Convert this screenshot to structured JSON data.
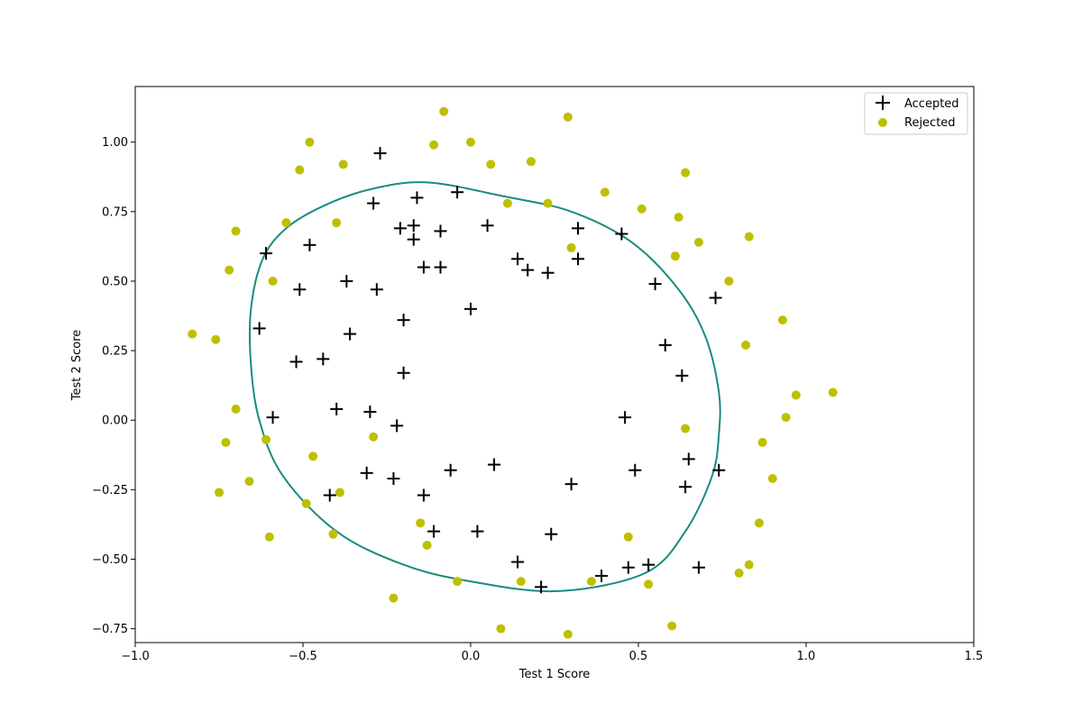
{
  "chart_data": {
    "type": "scatter",
    "title": "",
    "xlabel": "Test 1 Score",
    "ylabel": "Test 2 Score",
    "xlim": [
      -1.0,
      1.5
    ],
    "ylim": [
      -0.8,
      1.2
    ],
    "xticks": [
      -1.0,
      -0.5,
      0.0,
      0.5,
      1.0,
      1.5
    ],
    "xtick_labels": [
      "−1.0",
      "−0.5",
      "0.0",
      "0.5",
      "1.0",
      "1.5"
    ],
    "yticks": [
      -0.75,
      -0.5,
      -0.25,
      0.0,
      0.25,
      0.5,
      0.75,
      1.0
    ],
    "ytick_labels": [
      "−0.75",
      "−0.50",
      "−0.25",
      "0.00",
      "0.25",
      "0.50",
      "0.75",
      "1.00"
    ],
    "grid": false,
    "legend_position": "top-right",
    "series": [
      {
        "name": "Accepted",
        "marker": "plus",
        "color": "#000000",
        "points": [
          [
            -0.27,
            0.96
          ],
          [
            -0.29,
            0.78
          ],
          [
            -0.16,
            0.8
          ],
          [
            -0.04,
            0.82
          ],
          [
            -0.21,
            0.69
          ],
          [
            -0.17,
            0.7
          ],
          [
            -0.09,
            0.68
          ],
          [
            0.05,
            0.7
          ],
          [
            0.32,
            0.69
          ],
          [
            0.45,
            0.67
          ],
          [
            -0.48,
            0.63
          ],
          [
            -0.17,
            0.65
          ],
          [
            -0.61,
            0.6
          ],
          [
            0.14,
            0.58
          ],
          [
            0.32,
            0.58
          ],
          [
            0.17,
            0.54
          ],
          [
            0.23,
            0.53
          ],
          [
            -0.14,
            0.55
          ],
          [
            -0.09,
            0.55
          ],
          [
            -0.51,
            0.47
          ],
          [
            -0.37,
            0.5
          ],
          [
            -0.28,
            0.47
          ],
          [
            0.55,
            0.49
          ],
          [
            0.73,
            0.44
          ],
          [
            0.0,
            0.4
          ],
          [
            -0.2,
            0.36
          ],
          [
            -0.63,
            0.33
          ],
          [
            -0.36,
            0.31
          ],
          [
            0.58,
            0.27
          ],
          [
            -0.52,
            0.21
          ],
          [
            -0.44,
            0.22
          ],
          [
            -0.2,
            0.17
          ],
          [
            0.63,
            0.16
          ],
          [
            -0.59,
            0.01
          ],
          [
            -0.4,
            0.04
          ],
          [
            -0.3,
            0.03
          ],
          [
            -0.22,
            -0.02
          ],
          [
            0.46,
            0.01
          ],
          [
            -0.31,
            -0.19
          ],
          [
            -0.23,
            -0.21
          ],
          [
            -0.06,
            -0.18
          ],
          [
            0.07,
            -0.16
          ],
          [
            0.49,
            -0.18
          ],
          [
            0.65,
            -0.14
          ],
          [
            0.74,
            -0.18
          ],
          [
            0.3,
            -0.23
          ],
          [
            0.64,
            -0.24
          ],
          [
            -0.42,
            -0.27
          ],
          [
            -0.14,
            -0.27
          ],
          [
            -0.11,
            -0.4
          ],
          [
            0.02,
            -0.4
          ],
          [
            0.24,
            -0.41
          ],
          [
            0.14,
            -0.51
          ],
          [
            0.21,
            -0.6
          ],
          [
            0.39,
            -0.56
          ],
          [
            0.47,
            -0.53
          ],
          [
            0.53,
            -0.52
          ],
          [
            0.68,
            -0.53
          ]
        ]
      },
      {
        "name": "Rejected",
        "marker": "circle",
        "color": "#bfbf00",
        "points": [
          [
            -0.08,
            1.11
          ],
          [
            0.29,
            1.09
          ],
          [
            -0.48,
            1.0
          ],
          [
            -0.11,
            0.99
          ],
          [
            0.0,
            1.0
          ],
          [
            -0.51,
            0.9
          ],
          [
            -0.38,
            0.92
          ],
          [
            0.06,
            0.92
          ],
          [
            0.18,
            0.93
          ],
          [
            0.64,
            0.89
          ],
          [
            0.4,
            0.82
          ],
          [
            0.11,
            0.78
          ],
          [
            0.23,
            0.78
          ],
          [
            0.51,
            0.76
          ],
          [
            0.62,
            0.73
          ],
          [
            -0.55,
            0.71
          ],
          [
            -0.4,
            0.71
          ],
          [
            -0.7,
            0.68
          ],
          [
            0.83,
            0.66
          ],
          [
            0.68,
            0.64
          ],
          [
            0.3,
            0.62
          ],
          [
            0.61,
            0.59
          ],
          [
            -0.72,
            0.54
          ],
          [
            -0.59,
            0.5
          ],
          [
            0.77,
            0.5
          ],
          [
            0.93,
            0.36
          ],
          [
            -0.83,
            0.31
          ],
          [
            -0.76,
            0.29
          ],
          [
            0.82,
            0.27
          ],
          [
            0.97,
            0.09
          ],
          [
            1.08,
            0.1
          ],
          [
            -0.7,
            0.04
          ],
          [
            0.94,
            0.01
          ],
          [
            0.64,
            -0.03
          ],
          [
            -0.29,
            -0.06
          ],
          [
            -0.61,
            -0.07
          ],
          [
            -0.73,
            -0.08
          ],
          [
            0.87,
            -0.08
          ],
          [
            -0.47,
            -0.13
          ],
          [
            0.9,
            -0.21
          ],
          [
            -0.66,
            -0.22
          ],
          [
            -0.75,
            -0.26
          ],
          [
            -0.39,
            -0.26
          ],
          [
            -0.49,
            -0.3
          ],
          [
            -0.15,
            -0.37
          ],
          [
            0.86,
            -0.37
          ],
          [
            -0.41,
            -0.41
          ],
          [
            -0.6,
            -0.42
          ],
          [
            0.47,
            -0.42
          ],
          [
            -0.13,
            -0.45
          ],
          [
            0.83,
            -0.52
          ],
          [
            0.8,
            -0.55
          ],
          [
            -0.04,
            -0.58
          ],
          [
            0.15,
            -0.58
          ],
          [
            0.36,
            -0.58
          ],
          [
            0.53,
            -0.59
          ],
          [
            -0.23,
            -0.64
          ],
          [
            0.09,
            -0.75
          ],
          [
            0.6,
            -0.74
          ],
          [
            0.29,
            -0.77
          ]
        ]
      }
    ],
    "decision_boundary": {
      "color": "#1a8b80",
      "points": [
        [
          -0.13,
          0.855
        ],
        [
          0.1,
          0.805
        ],
        [
          0.3,
          0.75
        ],
        [
          0.48,
          0.64
        ],
        [
          0.62,
          0.47
        ],
        [
          0.7,
          0.3
        ],
        [
          0.74,
          0.1
        ],
        [
          0.74,
          -0.05
        ],
        [
          0.72,
          -0.2
        ],
        [
          0.64,
          -0.4
        ],
        [
          0.52,
          -0.55
        ],
        [
          0.26,
          -0.615
        ],
        [
          0.0,
          -0.58
        ],
        [
          -0.2,
          -0.52
        ],
        [
          -0.4,
          -0.4
        ],
        [
          -0.56,
          -0.2
        ],
        [
          -0.63,
          0.0
        ],
        [
          -0.655,
          0.2
        ],
        [
          -0.655,
          0.4
        ],
        [
          -0.62,
          0.58
        ],
        [
          -0.55,
          0.69
        ],
        [
          -0.44,
          0.77
        ],
        [
          -0.3,
          0.83
        ]
      ]
    }
  }
}
